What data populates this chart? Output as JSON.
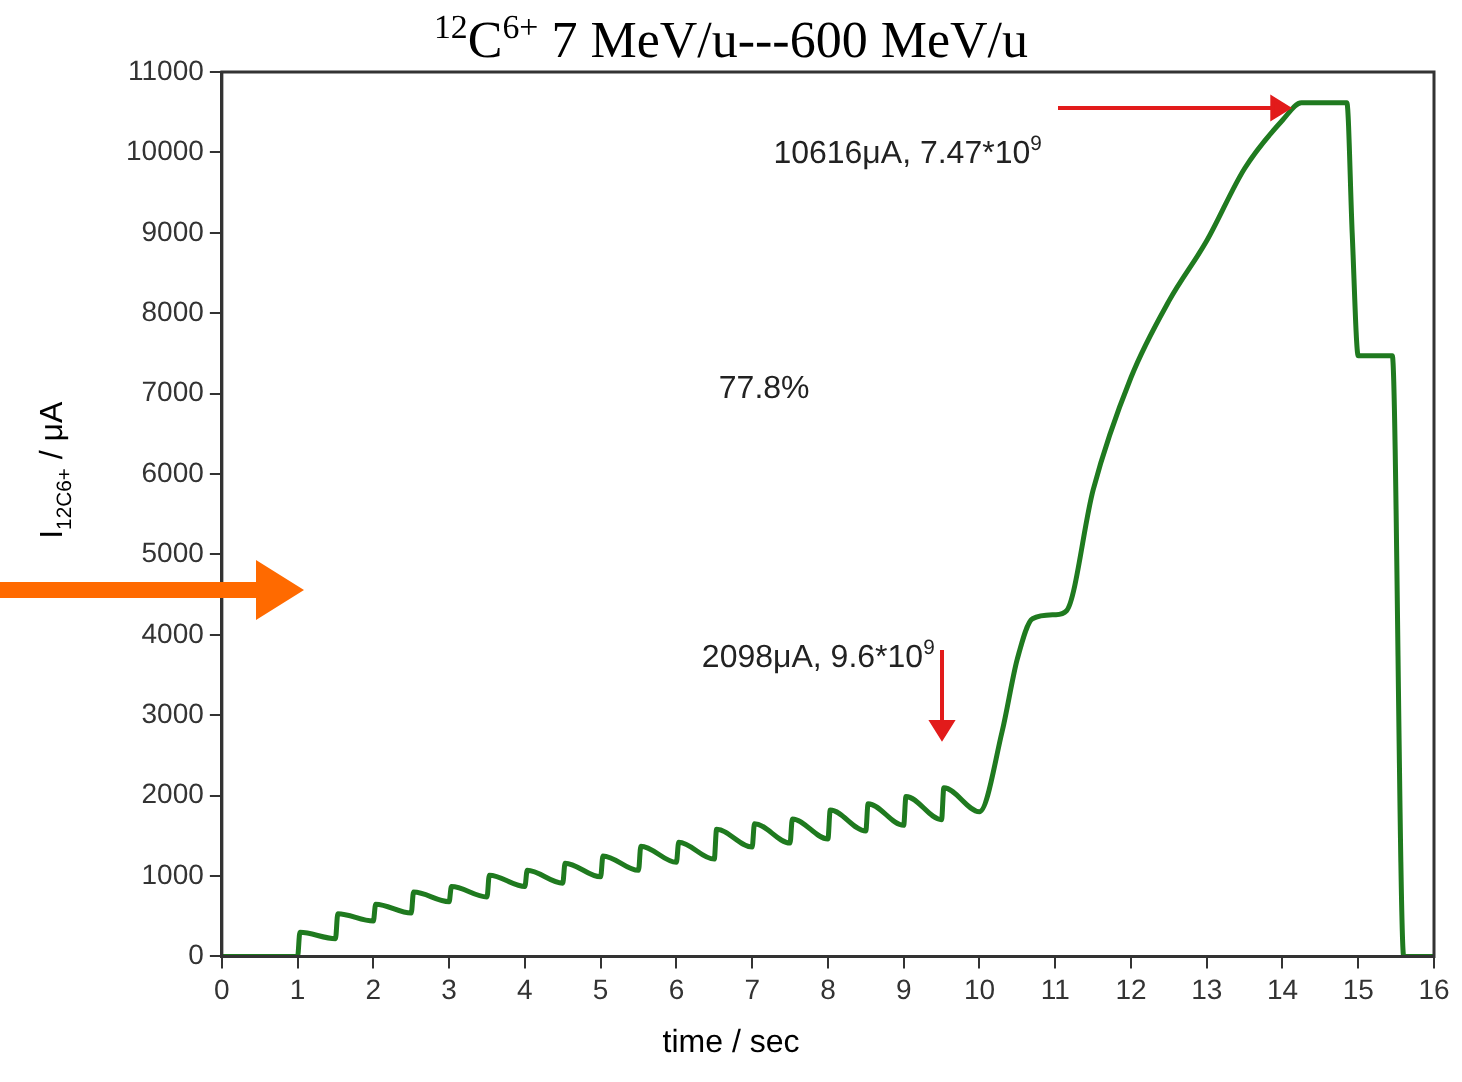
{
  "chart_data": {
    "type": "line",
    "title": "$^{12}$C$^{6+}$ 7 MeV/u---600 MeV/u",
    "xlabel": "time / sec",
    "ylabel": "I$_{12C6+}$ / μA",
    "x": [
      0,
      1,
      1.03,
      1.5,
      1.53,
      2,
      2.03,
      2.5,
      2.53,
      3,
      3.03,
      3.5,
      3.53,
      4,
      4.03,
      4.5,
      4.53,
      5,
      5.03,
      5.5,
      5.53,
      6,
      6.03,
      6.5,
      6.53,
      7,
      7.03,
      7.5,
      7.53,
      8,
      8.03,
      8.5,
      8.53,
      9,
      9.03,
      9.5,
      9.53,
      10,
      10.3,
      10.5,
      10.7,
      11,
      11.15,
      11.5,
      12,
      12.5,
      13,
      13.5,
      14,
      14.25,
      14.85,
      14.92,
      15,
      15.45,
      15.6,
      16
    ],
    "series": [
      {
        "color": "#1f7a1f",
        "values": [
          0,
          0,
          300,
          220,
          530,
          440,
          650,
          540,
          800,
          680,
          870,
          740,
          1010,
          870,
          1070,
          910,
          1160,
          990,
          1250,
          1070,
          1370,
          1170,
          1420,
          1210,
          1580,
          1360,
          1650,
          1410,
          1710,
          1460,
          1820,
          1560,
          1900,
          1630,
          1990,
          1700,
          2098,
          1800,
          2800,
          3700,
          4200,
          4250,
          4300,
          5800,
          7200,
          8150,
          8900,
          9800,
          10400,
          10616,
          10616,
          9000,
          7470,
          7470,
          0,
          0
        ]
      }
    ],
    "xlim": [
      0,
      16
    ],
    "xticks": [
      0,
      1,
      2,
      3,
      4,
      5,
      6,
      7,
      8,
      9,
      10,
      11,
      12,
      13,
      14,
      15,
      16
    ],
    "ylim": [
      0,
      11000
    ],
    "yticks": [
      0,
      1000,
      2000,
      3000,
      4000,
      5000,
      6000,
      7000,
      8000,
      9000,
      10000,
      11000
    ],
    "grid": false,
    "legend": false,
    "marker": "none",
    "line_style": "solid",
    "annotations": [
      "10616μA, 7.47*10$^{9}$",
      "77.8%",
      "2098μA, 9.6*10$^{9}$"
    ]
  }
}
